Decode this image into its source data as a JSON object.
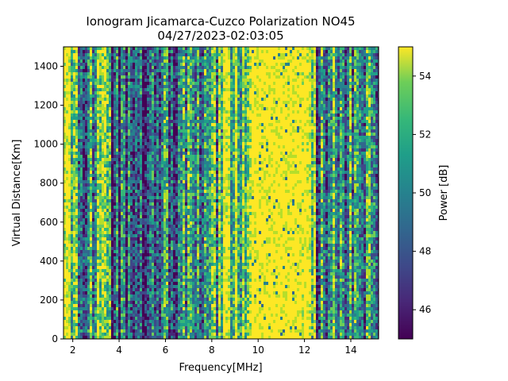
{
  "chart_data": {
    "type": "heatmap",
    "title_line1": "Ionogram Jicamarca-Cuzco Polarization NO45",
    "title_line2": "04/27/2023-02:03:05",
    "xlabel": "Frequency[MHz]",
    "ylabel": "Virtual Distance[Km]",
    "xlim": [
      1.6,
      15.2
    ],
    "ylim": [
      0,
      1500
    ],
    "xticks": [
      2,
      4,
      6,
      8,
      10,
      12,
      14
    ],
    "yticks": [
      0,
      200,
      400,
      600,
      800,
      1000,
      1200,
      1400
    ],
    "colorbar": {
      "label": "Power [dB]",
      "range": [
        45,
        55
      ],
      "ticks": [
        46,
        48,
        50,
        52,
        54
      ],
      "colormap": "viridis"
    },
    "bands": [
      {
        "x": [
          1.6,
          2.2
        ],
        "level": 0.85
      },
      {
        "x": [
          2.2,
          3.0
        ],
        "level": 0.55
      },
      {
        "x": [
          3.0,
          3.6
        ],
        "level": 0.75
      },
      {
        "x": [
          3.6,
          5.2
        ],
        "level": 0.3
      },
      {
        "x": [
          5.2,
          6.4
        ],
        "level": 0.35
      },
      {
        "x": [
          6.4,
          7.2
        ],
        "level": 0.5
      },
      {
        "x": [
          7.2,
          8.4
        ],
        "level": 0.6
      },
      {
        "x": [
          8.4,
          9.1
        ],
        "level": 0.75
      },
      {
        "x": [
          9.1,
          9.7
        ],
        "level": 0.65
      },
      {
        "x": [
          9.7,
          11.8
        ],
        "level": 0.97
      },
      {
        "x": [
          11.8,
          12.4
        ],
        "level": 0.85
      },
      {
        "x": [
          12.4,
          13.0
        ],
        "level": 0.45
      },
      {
        "x": [
          13.0,
          14.0
        ],
        "level": 0.5
      },
      {
        "x": [
          14.0,
          15.2
        ],
        "level": 0.45
      }
    ],
    "grid": false
  }
}
